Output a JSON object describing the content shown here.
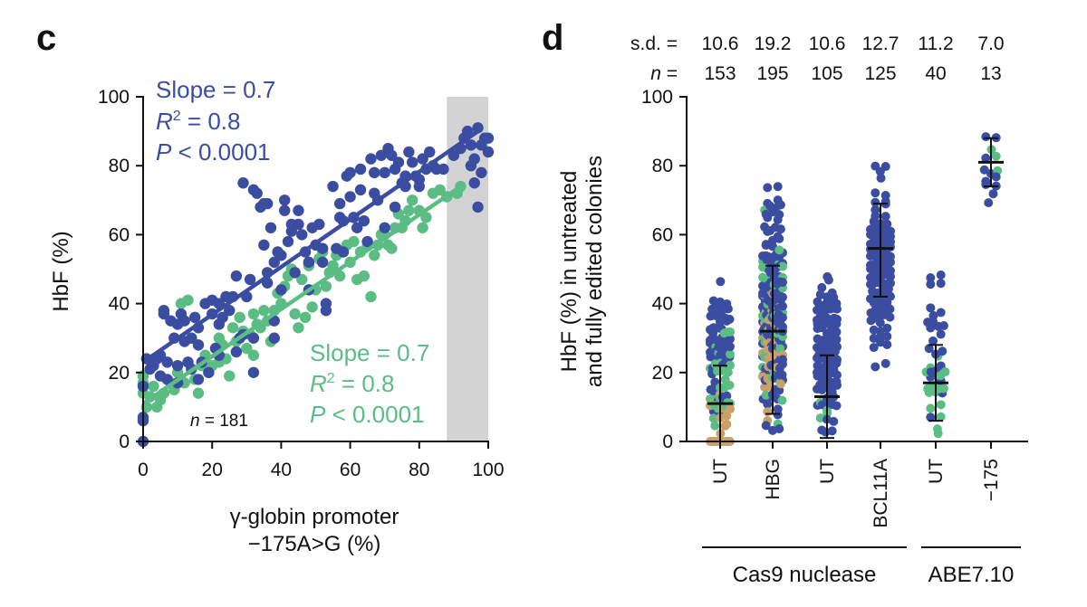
{
  "panel_c": {
    "letter": "c",
    "n_label_italic": "n",
    "n_label_rest": "= 181",
    "blue_stats": [
      "Slope = 0.7",
      "R",
      "2",
      " = 0.8",
      "P",
      " < 0.0001"
    ],
    "green_stats": [
      "Slope = 0.7",
      "R",
      "2",
      " = 0.8",
      "P",
      " < 0.0001"
    ],
    "xlabel_line1": "γ-globin promoter",
    "xlabel_line2": "−175A>G (%)",
    "ylabel": "HbF (%)"
  },
  "panel_d": {
    "letter": "d",
    "sd_label": "s.d. =",
    "n_label_italic": "n",
    "n_label_rest": " =",
    "sd_values": [
      "10.6",
      "19.2",
      "10.6",
      "12.7",
      "11.2",
      "7.0"
    ],
    "n_values": [
      "153",
      "195",
      "105",
      "125",
      "40",
      "13"
    ],
    "ylabel_line1": "HbF (%) in untreated",
    "ylabel_line2": "and fully edited colonies",
    "group_labels": [
      "Cas9 nuclease",
      "ABE7.10"
    ]
  },
  "colors": {
    "blue": "#3a4da0",
    "green": "#5bbd84",
    "tan": "#c8a068",
    "shade": "#d3d3d3"
  },
  "chart_data": [
    {
      "type": "scatter",
      "xlabel": "γ-globin promoter −175A>G (%)",
      "ylabel": "HbF (%)",
      "xlim": [
        0,
        100
      ],
      "ylim": [
        0,
        100
      ],
      "xticks": [
        0,
        20,
        40,
        60,
        80,
        100
      ],
      "yticks": [
        0,
        20,
        40,
        60,
        80,
        100
      ],
      "shaded_x_range": [
        88,
        100
      ],
      "grid": false,
      "series": [
        {
          "color": "#3a4da0",
          "fit": {
            "slope": 0.7,
            "x": [
              0,
              97
            ],
            "y": [
              23,
              90
            ]
          },
          "points": [
            [
              0,
              0
            ],
            [
              0,
              7
            ],
            [
              0,
              6
            ],
            [
              0,
              16
            ],
            [
              1,
              24
            ],
            [
              2,
              21
            ],
            [
              3,
              22
            ],
            [
              4,
              24
            ],
            [
              5,
              19
            ],
            [
              5,
              25
            ],
            [
              6,
              37
            ],
            [
              6,
              38
            ],
            [
              7,
              18
            ],
            [
              7,
              23
            ],
            [
              8,
              35
            ],
            [
              9,
              30
            ],
            [
              10,
              17
            ],
            [
              10,
              22
            ],
            [
              10,
              34
            ],
            [
              11,
              37
            ],
            [
              12,
              29
            ],
            [
              12,
              35
            ],
            [
              13,
              23
            ],
            [
              14,
              21
            ],
            [
              14,
              30
            ],
            [
              15,
              36
            ],
            [
              16,
              18
            ],
            [
              16,
              28
            ],
            [
              16,
              33
            ],
            [
              17,
              23
            ],
            [
              18,
              40
            ],
            [
              19,
              20
            ],
            [
              20,
              41
            ],
            [
              20,
              37
            ],
            [
              21,
              27
            ],
            [
              22,
              40
            ],
            [
              22,
              34
            ],
            [
              22,
              25
            ],
            [
              23,
              36
            ],
            [
              24,
              42
            ],
            [
              25,
              38
            ],
            [
              26,
              42
            ],
            [
              27,
              26
            ],
            [
              27,
              48
            ],
            [
              28,
              30
            ],
            [
              29,
              75
            ],
            [
              29,
              31
            ],
            [
              30,
              42
            ],
            [
              31,
              47
            ],
            [
              32,
              73
            ],
            [
              32,
              30
            ],
            [
              32,
              20
            ],
            [
              33,
              72
            ],
            [
              34,
              68
            ],
            [
              35,
              57
            ],
            [
              35,
              69
            ],
            [
              36,
              69
            ],
            [
              36,
              49
            ],
            [
              36,
              46
            ],
            [
              37,
              62
            ],
            [
              38,
              52
            ],
            [
              38,
              30
            ],
            [
              38,
              35
            ],
            [
              39,
              55
            ],
            [
              40,
              54
            ],
            [
              40,
              44
            ],
            [
              41,
              70
            ],
            [
              41,
              67
            ],
            [
              42,
              58
            ],
            [
              43,
              61
            ],
            [
              43,
              63
            ],
            [
              44,
              49
            ],
            [
              45,
              63
            ],
            [
              45,
              67
            ],
            [
              46,
              60
            ],
            [
              47,
              55
            ],
            [
              48,
              52
            ],
            [
              48,
              44
            ],
            [
              49,
              62
            ],
            [
              50,
              57
            ],
            [
              51,
              63
            ],
            [
              52,
              56
            ],
            [
              52,
              52
            ],
            [
              53,
              38
            ],
            [
              53,
              40
            ],
            [
              55,
              74
            ],
            [
              56,
              56
            ],
            [
              57,
              69
            ],
            [
              57,
              65
            ],
            [
              58,
              64
            ],
            [
              58,
              55
            ],
            [
              59,
              77
            ],
            [
              60,
              78
            ],
            [
              60,
              71
            ],
            [
              61,
              65
            ],
            [
              62,
              62
            ],
            [
              63,
              79
            ],
            [
              63,
              73
            ],
            [
              64,
              64
            ],
            [
              65,
              58
            ],
            [
              66,
              82
            ],
            [
              67,
              78
            ],
            [
              67,
              72
            ],
            [
              68,
              70
            ],
            [
              69,
              83
            ],
            [
              70,
              78
            ],
            [
              70,
              62
            ],
            [
              71,
              85
            ],
            [
              72,
              83
            ],
            [
              73,
              79
            ],
            [
              73,
              68
            ],
            [
              74,
              81
            ],
            [
              75,
              75
            ],
            [
              76,
              77
            ],
            [
              76,
              74
            ],
            [
              77,
              84
            ],
            [
              78,
              81
            ],
            [
              79,
              77
            ],
            [
              80,
              76
            ],
            [
              80,
              74
            ],
            [
              81,
              82
            ],
            [
              82,
              79
            ],
            [
              83,
              84
            ],
            [
              84,
              80
            ],
            [
              85,
              79
            ],
            [
              87,
              79
            ],
            [
              90,
              83
            ],
            [
              92,
              85
            ],
            [
              93,
              88
            ],
            [
              94,
              90
            ],
            [
              95,
              86
            ],
            [
              95,
              80
            ],
            [
              96,
              82
            ],
            [
              96,
              75
            ],
            [
              97,
              91
            ],
            [
              97,
              68
            ],
            [
              98,
              78
            ],
            [
              98,
              86
            ],
            [
              99,
              88
            ],
            [
              100,
              84
            ],
            [
              100,
              88
            ]
          ]
        },
        {
          "color": "#5bbd84",
          "fit": {
            "slope": 0.7,
            "x": [
              0,
              92
            ],
            "y": [
              11,
              74
            ]
          },
          "points": [
            [
              0,
              14
            ],
            [
              0,
              17
            ],
            [
              0,
              19
            ],
            [
              1,
              10
            ],
            [
              2,
              13
            ],
            [
              3,
              16
            ],
            [
              4,
              10
            ],
            [
              5,
              12
            ],
            [
              6,
              14
            ],
            [
              8,
              17
            ],
            [
              9,
              15
            ],
            [
              10,
              20
            ],
            [
              11,
              40
            ],
            [
              12,
              17
            ],
            [
              13,
              41
            ],
            [
              14,
              30
            ],
            [
              15,
              18
            ],
            [
              16,
              14
            ],
            [
              17,
              22
            ],
            [
              18,
              25
            ],
            [
              19,
              20
            ],
            [
              20,
              22
            ],
            [
              21,
              27
            ],
            [
              22,
              23
            ],
            [
              22,
              30
            ],
            [
              23,
              28
            ],
            [
              24,
              24
            ],
            [
              25,
              19
            ],
            [
              26,
              33
            ],
            [
              27,
              29
            ],
            [
              28,
              36
            ],
            [
              29,
              32
            ],
            [
              30,
              27
            ],
            [
              31,
              31
            ],
            [
              32,
              25
            ],
            [
              32,
              37
            ],
            [
              33,
              34
            ],
            [
              34,
              33
            ],
            [
              35,
              38
            ],
            [
              36,
              35
            ],
            [
              37,
              29
            ],
            [
              38,
              38
            ],
            [
              39,
              43
            ],
            [
              40,
              40
            ],
            [
              41,
              45
            ],
            [
              42,
              48
            ],
            [
              43,
              50
            ],
            [
              44,
              37
            ],
            [
              45,
              33
            ],
            [
              46,
              47
            ],
            [
              47,
              36
            ],
            [
              48,
              51
            ],
            [
              49,
              39
            ],
            [
              50,
              44
            ],
            [
              51,
              53
            ],
            [
              52,
              55
            ],
            [
              53,
              45
            ],
            [
              54,
              49
            ],
            [
              55,
              51
            ],
            [
              56,
              54
            ],
            [
              57,
              48
            ],
            [
              58,
              55
            ],
            [
              59,
              57
            ],
            [
              60,
              52
            ],
            [
              61,
              58
            ],
            [
              62,
              47
            ],
            [
              63,
              55
            ],
            [
              64,
              48
            ],
            [
              65,
              57
            ],
            [
              66,
              42
            ],
            [
              67,
              54
            ],
            [
              68,
              57
            ],
            [
              69,
              60
            ],
            [
              70,
              60
            ],
            [
              71,
              57
            ],
            [
              72,
              56
            ],
            [
              73,
              62
            ],
            [
              74,
              66
            ],
            [
              75,
              62
            ],
            [
              76,
              64
            ],
            [
              77,
              67
            ],
            [
              78,
              70
            ],
            [
              80,
              67
            ],
            [
              81,
              62
            ],
            [
              82,
              65
            ],
            [
              84,
              72
            ],
            [
              86,
              73
            ],
            [
              88,
              71
            ],
            [
              91,
              72
            ],
            [
              92,
              74
            ]
          ]
        }
      ]
    },
    {
      "type": "scatter",
      "ylabel": "HbF (%) in untreated and fully edited colonies",
      "ylim": [
        0,
        100
      ],
      "yticks": [
        0,
        20,
        40,
        60,
        80,
        100
      ],
      "categories": [
        "UT",
        "HBG",
        "UT",
        "BCL11A",
        "UT",
        "−175"
      ],
      "groups": [
        {
          "label": "Cas9 nuclease",
          "categories": [
            0,
            1,
            2,
            3
          ]
        },
        {
          "label": "ABE7.10",
          "categories": [
            4,
            5
          ]
        }
      ],
      "sd": [
        10.6,
        19.2,
        10.6,
        12.7,
        11.2,
        7.0
      ],
      "n": [
        153,
        195,
        105,
        125,
        40,
        13
      ],
      "median": [
        11,
        32,
        13,
        56,
        17,
        81
      ],
      "whisker_low": [
        0,
        8,
        1,
        42,
        6,
        74
      ],
      "whisker_high": [
        22,
        51,
        25,
        69,
        28,
        88
      ],
      "columns": [
        {
          "blue_range": [
            2,
            52
          ],
          "green_range": [
            2,
            32
          ],
          "tan_range": [
            0,
            20
          ],
          "blue_count": 60,
          "green_count": 28,
          "tan_count": 24
        },
        {
          "blue_range": [
            2,
            74
          ],
          "green_range": [
            5,
            68
          ],
          "tan_range": [
            5,
            50
          ],
          "blue_count": 150,
          "green_count": 38,
          "tan_count": 36
        },
        {
          "blue_range": [
            0,
            52
          ],
          "green_range": [
            5,
            15
          ],
          "tan_range": [
            0,
            0
          ],
          "blue_count": 105,
          "green_count": 4,
          "tan_count": 0
        },
        {
          "blue_range": [
            20,
            80
          ],
          "green_range": [
            0,
            0
          ],
          "tan_range": [
            0,
            0
          ],
          "blue_count": 125,
          "green_count": 0,
          "tan_count": 0
        },
        {
          "blue_range": [
            5,
            52
          ],
          "green_range": [
            0,
            28
          ],
          "tan_range": [
            0,
            0
          ],
          "blue_count": 24,
          "green_count": 16,
          "tan_count": 0
        },
        {
          "blue_range": [
            69,
            92
          ],
          "green_range": [
            74,
            86
          ],
          "tan_range": [
            0,
            0
          ],
          "blue_count": 11,
          "green_count": 3,
          "tan_count": 0
        }
      ]
    }
  ]
}
